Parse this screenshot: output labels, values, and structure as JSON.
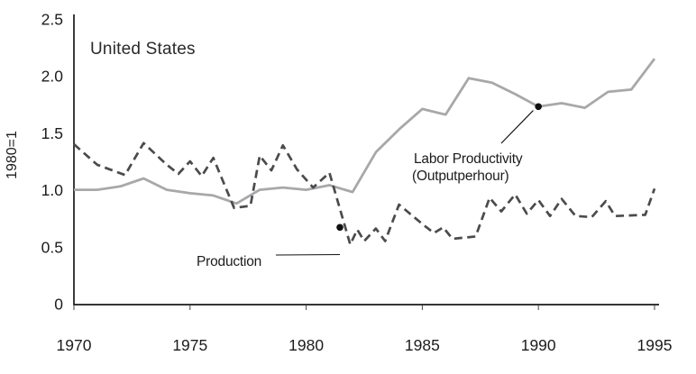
{
  "chart_data": {
    "type": "line",
    "title": "United States",
    "xlabel": "",
    "ylabel": "1980=1",
    "xlim": [
      1970,
      1995
    ],
    "ylim": [
      0,
      2.5
    ],
    "grid": false,
    "legend_position": "inline-annotations",
    "axis_color": "#1a1a1a",
    "text_color": "#1c1c1c",
    "x_axis": {
      "tick_values": [
        1970,
        1975,
        1980,
        1985,
        1990,
        1995
      ],
      "tick_labels": [
        "1970",
        "1975",
        "1980",
        "1985",
        "1990",
        "1995"
      ]
    },
    "y_axis": {
      "title": "1980=1",
      "ticks": [
        {
          "value": 2.5,
          "label": "2.5"
        },
        {
          "value": 2.0,
          "label": "2.0"
        },
        {
          "value": 1.5,
          "label": "1.5"
        },
        {
          "value": 1.0,
          "label": "1.0"
        },
        {
          "value": 0.5,
          "label": "0.5"
        },
        {
          "value": 0.0,
          "label": "0"
        }
      ]
    },
    "series": [
      {
        "key": "labor_productivity",
        "name": "Labor Productivity (Output per hour)",
        "style": "solid",
        "color": "#a8a8aa",
        "points": [
          [
            1970,
            1.0
          ],
          [
            1971,
            1.0
          ],
          [
            1972,
            1.03
          ],
          [
            1973,
            1.1
          ],
          [
            1974,
            1.0
          ],
          [
            1975,
            0.97
          ],
          [
            1976,
            0.95
          ],
          [
            1977,
            0.88
          ],
          [
            1978,
            1.0
          ],
          [
            1979,
            1.02
          ],
          [
            1980,
            1.0
          ],
          [
            1981,
            1.04
          ],
          [
            1982,
            0.98
          ],
          [
            1983,
            1.33
          ],
          [
            1984,
            1.53
          ],
          [
            1985,
            1.71
          ],
          [
            1986,
            1.66
          ],
          [
            1987,
            1.98
          ],
          [
            1988,
            1.94
          ],
          [
            1989,
            1.84
          ],
          [
            1990,
            1.73
          ],
          [
            1991,
            1.76
          ],
          [
            1992,
            1.72
          ],
          [
            1993,
            1.86
          ],
          [
            1994,
            1.88
          ],
          [
            1995,
            2.15
          ]
        ]
      },
      {
        "key": "production",
        "name": "Production",
        "style": "dashed",
        "color": "#4b4b4d",
        "points": [
          [
            1970,
            1.4
          ],
          [
            1971,
            1.22
          ],
          [
            1972.2,
            1.13
          ],
          [
            1973,
            1.41
          ],
          [
            1974,
            1.22
          ],
          [
            1974.5,
            1.14
          ],
          [
            1975,
            1.25
          ],
          [
            1975.5,
            1.12
          ],
          [
            1976,
            1.28
          ],
          [
            1976.9,
            0.84
          ],
          [
            1977.6,
            0.86
          ],
          [
            1978,
            1.3
          ],
          [
            1978.5,
            1.17
          ],
          [
            1979,
            1.39
          ],
          [
            1979.6,
            1.18
          ],
          [
            1980.3,
            1.02
          ],
          [
            1981,
            1.15
          ],
          [
            1981.9,
            0.52
          ],
          [
            1982.2,
            0.65
          ],
          [
            1982.5,
            0.55
          ],
          [
            1983,
            0.66
          ],
          [
            1983.4,
            0.55
          ],
          [
            1984,
            0.87
          ],
          [
            1985,
            0.7
          ],
          [
            1985.5,
            0.62
          ],
          [
            1985.9,
            0.67
          ],
          [
            1986.3,
            0.57
          ],
          [
            1987.3,
            0.59
          ],
          [
            1987.9,
            0.93
          ],
          [
            1988.4,
            0.81
          ],
          [
            1989,
            0.96
          ],
          [
            1989.5,
            0.79
          ],
          [
            1990,
            0.91
          ],
          [
            1990.5,
            0.77
          ],
          [
            1991,
            0.92
          ],
          [
            1991.6,
            0.77
          ],
          [
            1992.3,
            0.76
          ],
          [
            1992.9,
            0.9
          ],
          [
            1993.3,
            0.77
          ],
          [
            1994.6,
            0.78
          ],
          [
            1995,
            1.01
          ]
        ]
      }
    ],
    "markers": [
      {
        "series": "labor_productivity",
        "x": 1990,
        "y": 1.73,
        "color": "#111111"
      },
      {
        "series": "production",
        "x": 1981.45,
        "y": 0.67,
        "color": "#111111"
      }
    ],
    "annotations": {
      "labor_productivity": {
        "lines": [
          "Labor Productivity",
          "(Output per hour)"
        ],
        "points_to": {
          "x": 1990,
          "y": 1.73
        }
      },
      "production": {
        "label": "Production",
        "points_to": {
          "x": 1981.5,
          "y": 0.6
        }
      }
    }
  }
}
